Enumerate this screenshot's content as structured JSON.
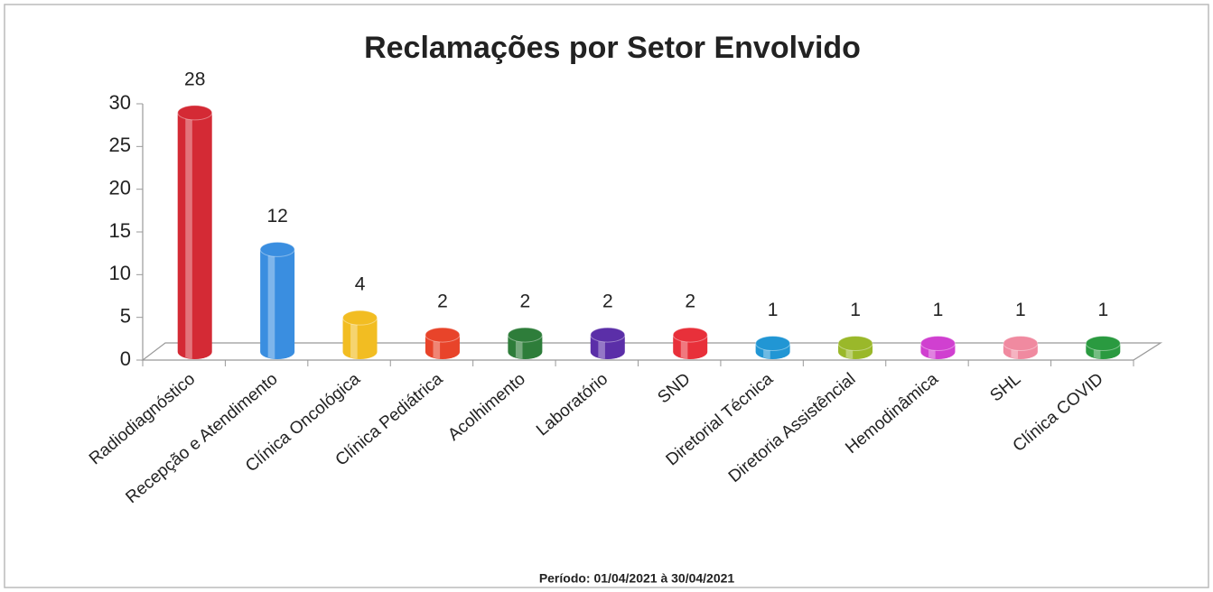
{
  "chart_data": {
    "type": "bar",
    "title": "Reclamações por Setor Envolvido",
    "subtitle": "Período: 01/04/2021 à 30/04/2021",
    "categories": [
      "Radiodiagnóstico",
      "Recepção e Atendimento",
      "Clínica Oncológica",
      "Clínica Pediátrica",
      "Acolhimento",
      "Laboratório",
      "SND",
      "Diretorial Técnica",
      "Diretoria Assistêncial",
      "Hemodinâmica",
      "SHL",
      "Clínica COVID"
    ],
    "values": [
      28,
      12,
      4,
      2,
      2,
      2,
      2,
      1,
      1,
      1,
      1,
      1
    ],
    "colors": [
      "#d42a35",
      "#3a8ee0",
      "#f2bd22",
      "#e8442a",
      "#2e7d3a",
      "#5b2fa8",
      "#e8303a",
      "#2196d4",
      "#9ab82a",
      "#d040d0",
      "#f08aa0",
      "#2a9a40"
    ],
    "ylim": [
      0,
      30
    ],
    "yticks": [
      0,
      5,
      10,
      15,
      20,
      25,
      30
    ],
    "grid": false
  }
}
